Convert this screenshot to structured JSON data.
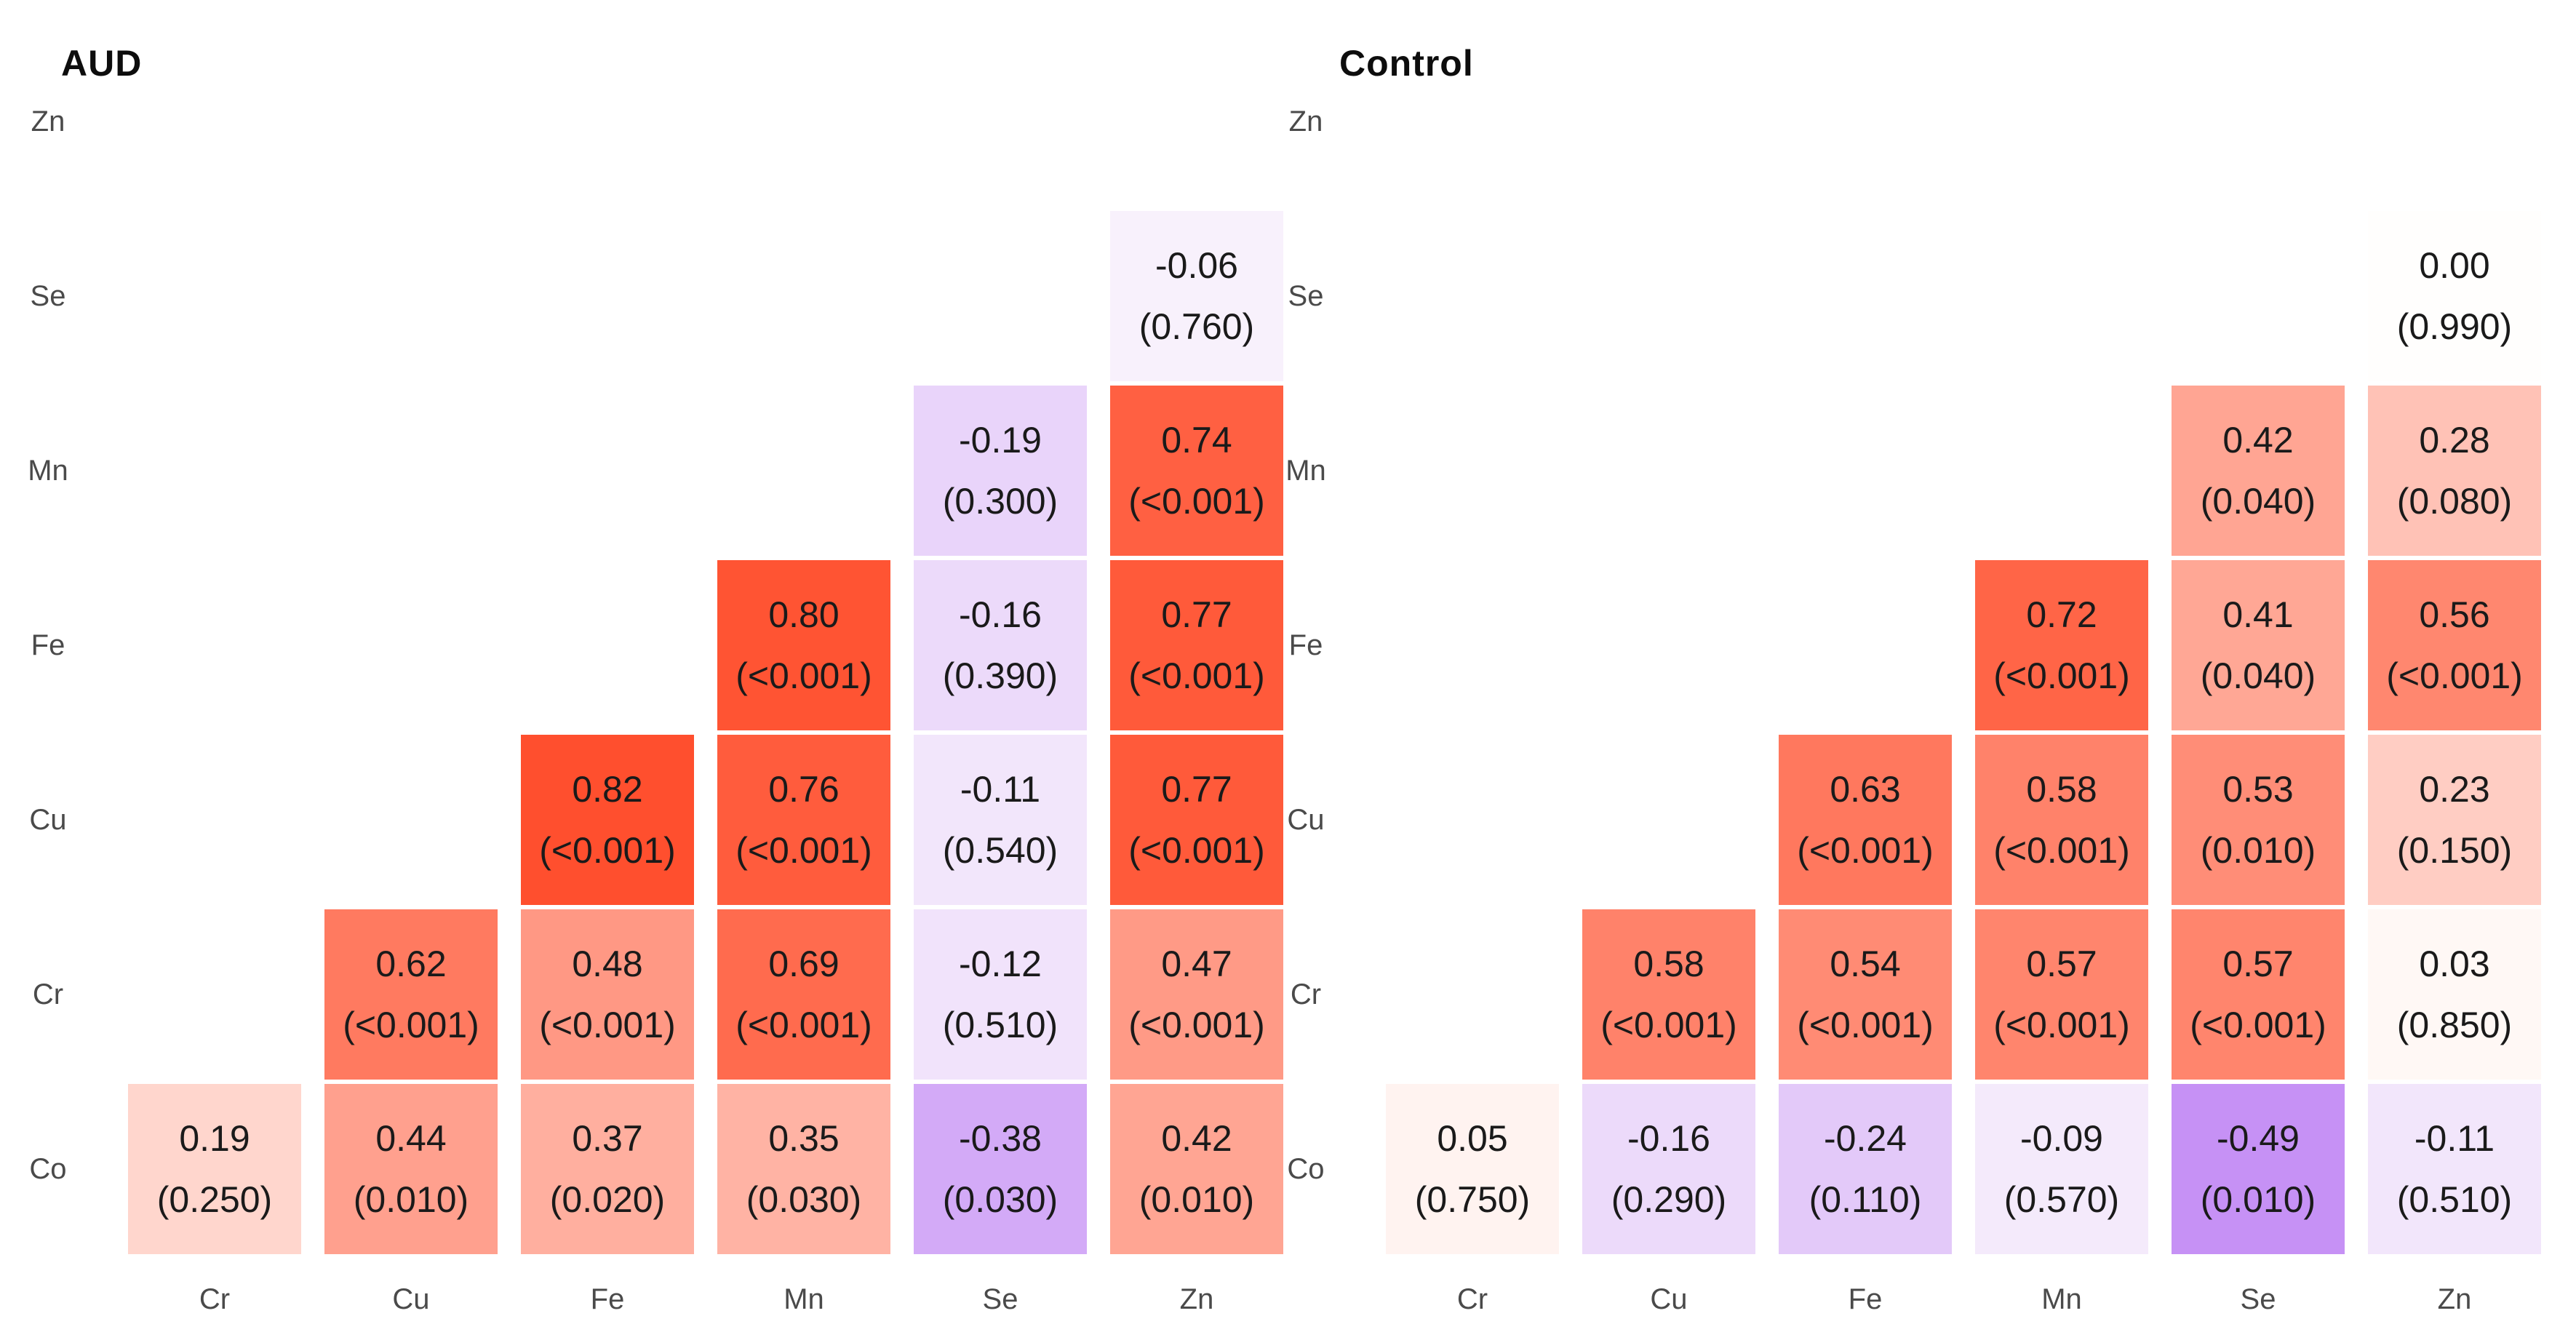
{
  "colormap": {
    "zero": "#fffefd",
    "positive_end": "#ff2900",
    "negative_end": "#8a20ec",
    "cell_text": "#1a1a1a",
    "axis_label_text": "#4a4a4a"
  },
  "chart_data": [
    {
      "type": "heatmap",
      "title": "AUD",
      "x": [
        "Cr",
        "Cu",
        "Fe",
        "Mn",
        "Se",
        "Zn"
      ],
      "y": [
        "Zn",
        "Se",
        "Mn",
        "Fe",
        "Cu",
        "Cr",
        "Co"
      ],
      "value_format": "r (p)",
      "legend": "none",
      "cells": [
        {
          "row": "Se",
          "col": "Zn",
          "r": -0.06,
          "p": "0.760"
        },
        {
          "row": "Mn",
          "col": "Se",
          "r": -0.19,
          "p": "0.300"
        },
        {
          "row": "Mn",
          "col": "Zn",
          "r": 0.74,
          "p": "<0.001"
        },
        {
          "row": "Fe",
          "col": "Mn",
          "r": 0.8,
          "p": "<0.001"
        },
        {
          "row": "Fe",
          "col": "Se",
          "r": -0.16,
          "p": "0.390"
        },
        {
          "row": "Fe",
          "col": "Zn",
          "r": 0.77,
          "p": "<0.001"
        },
        {
          "row": "Cu",
          "col": "Fe",
          "r": 0.82,
          "p": "<0.001"
        },
        {
          "row": "Cu",
          "col": "Mn",
          "r": 0.76,
          "p": "<0.001"
        },
        {
          "row": "Cu",
          "col": "Se",
          "r": -0.11,
          "p": "0.540"
        },
        {
          "row": "Cu",
          "col": "Zn",
          "r": 0.77,
          "p": "<0.001"
        },
        {
          "row": "Cr",
          "col": "Cu",
          "r": 0.62,
          "p": "<0.001"
        },
        {
          "row": "Cr",
          "col": "Fe",
          "r": 0.48,
          "p": "<0.001"
        },
        {
          "row": "Cr",
          "col": "Mn",
          "r": 0.69,
          "p": "<0.001"
        },
        {
          "row": "Cr",
          "col": "Se",
          "r": -0.12,
          "p": "0.510"
        },
        {
          "row": "Cr",
          "col": "Zn",
          "r": 0.47,
          "p": "<0.001"
        },
        {
          "row": "Co",
          "col": "Cr",
          "r": 0.19,
          "p": "0.250"
        },
        {
          "row": "Co",
          "col": "Cu",
          "r": 0.44,
          "p": "0.010"
        },
        {
          "row": "Co",
          "col": "Fe",
          "r": 0.37,
          "p": "0.020"
        },
        {
          "row": "Co",
          "col": "Mn",
          "r": 0.35,
          "p": "0.030"
        },
        {
          "row": "Co",
          "col": "Se",
          "r": -0.38,
          "p": "0.030"
        },
        {
          "row": "Co",
          "col": "Zn",
          "r": 0.42,
          "p": "0.010"
        }
      ]
    },
    {
      "type": "heatmap",
      "title": "Control",
      "x": [
        "Cr",
        "Cu",
        "Fe",
        "Mn",
        "Se",
        "Zn"
      ],
      "y": [
        "Zn",
        "Se",
        "Mn",
        "Fe",
        "Cu",
        "Cr",
        "Co"
      ],
      "value_format": "r (p)",
      "legend": "none",
      "cells": [
        {
          "row": "Se",
          "col": "Zn",
          "r": 0.0,
          "p": "0.990"
        },
        {
          "row": "Mn",
          "col": "Se",
          "r": 0.42,
          "p": "0.040"
        },
        {
          "row": "Mn",
          "col": "Zn",
          "r": 0.28,
          "p": "0.080"
        },
        {
          "row": "Fe",
          "col": "Mn",
          "r": 0.72,
          "p": "<0.001"
        },
        {
          "row": "Fe",
          "col": "Se",
          "r": 0.41,
          "p": "0.040"
        },
        {
          "row": "Fe",
          "col": "Zn",
          "r": 0.56,
          "p": "<0.001"
        },
        {
          "row": "Cu",
          "col": "Fe",
          "r": 0.63,
          "p": "<0.001"
        },
        {
          "row": "Cu",
          "col": "Mn",
          "r": 0.58,
          "p": "<0.001"
        },
        {
          "row": "Cu",
          "col": "Se",
          "r": 0.53,
          "p": "0.010"
        },
        {
          "row": "Cu",
          "col": "Zn",
          "r": 0.23,
          "p": "0.150"
        },
        {
          "row": "Cr",
          "col": "Cu",
          "r": 0.58,
          "p": "<0.001"
        },
        {
          "row": "Cr",
          "col": "Fe",
          "r": 0.54,
          "p": "<0.001"
        },
        {
          "row": "Cr",
          "col": "Mn",
          "r": 0.57,
          "p": "<0.001"
        },
        {
          "row": "Cr",
          "col": "Se",
          "r": 0.57,
          "p": "<0.001"
        },
        {
          "row": "Cr",
          "col": "Zn",
          "r": 0.03,
          "p": "0.850"
        },
        {
          "row": "Co",
          "col": "Cr",
          "r": 0.05,
          "p": "0.750"
        },
        {
          "row": "Co",
          "col": "Cu",
          "r": -0.16,
          "p": "0.290"
        },
        {
          "row": "Co",
          "col": "Fe",
          "r": -0.24,
          "p": "0.110"
        },
        {
          "row": "Co",
          "col": "Mn",
          "r": -0.09,
          "p": "0.570"
        },
        {
          "row": "Co",
          "col": "Se",
          "r": -0.49,
          "p": "0.010"
        },
        {
          "row": "Co",
          "col": "Zn",
          "r": -0.11,
          "p": "0.510"
        }
      ]
    }
  ]
}
